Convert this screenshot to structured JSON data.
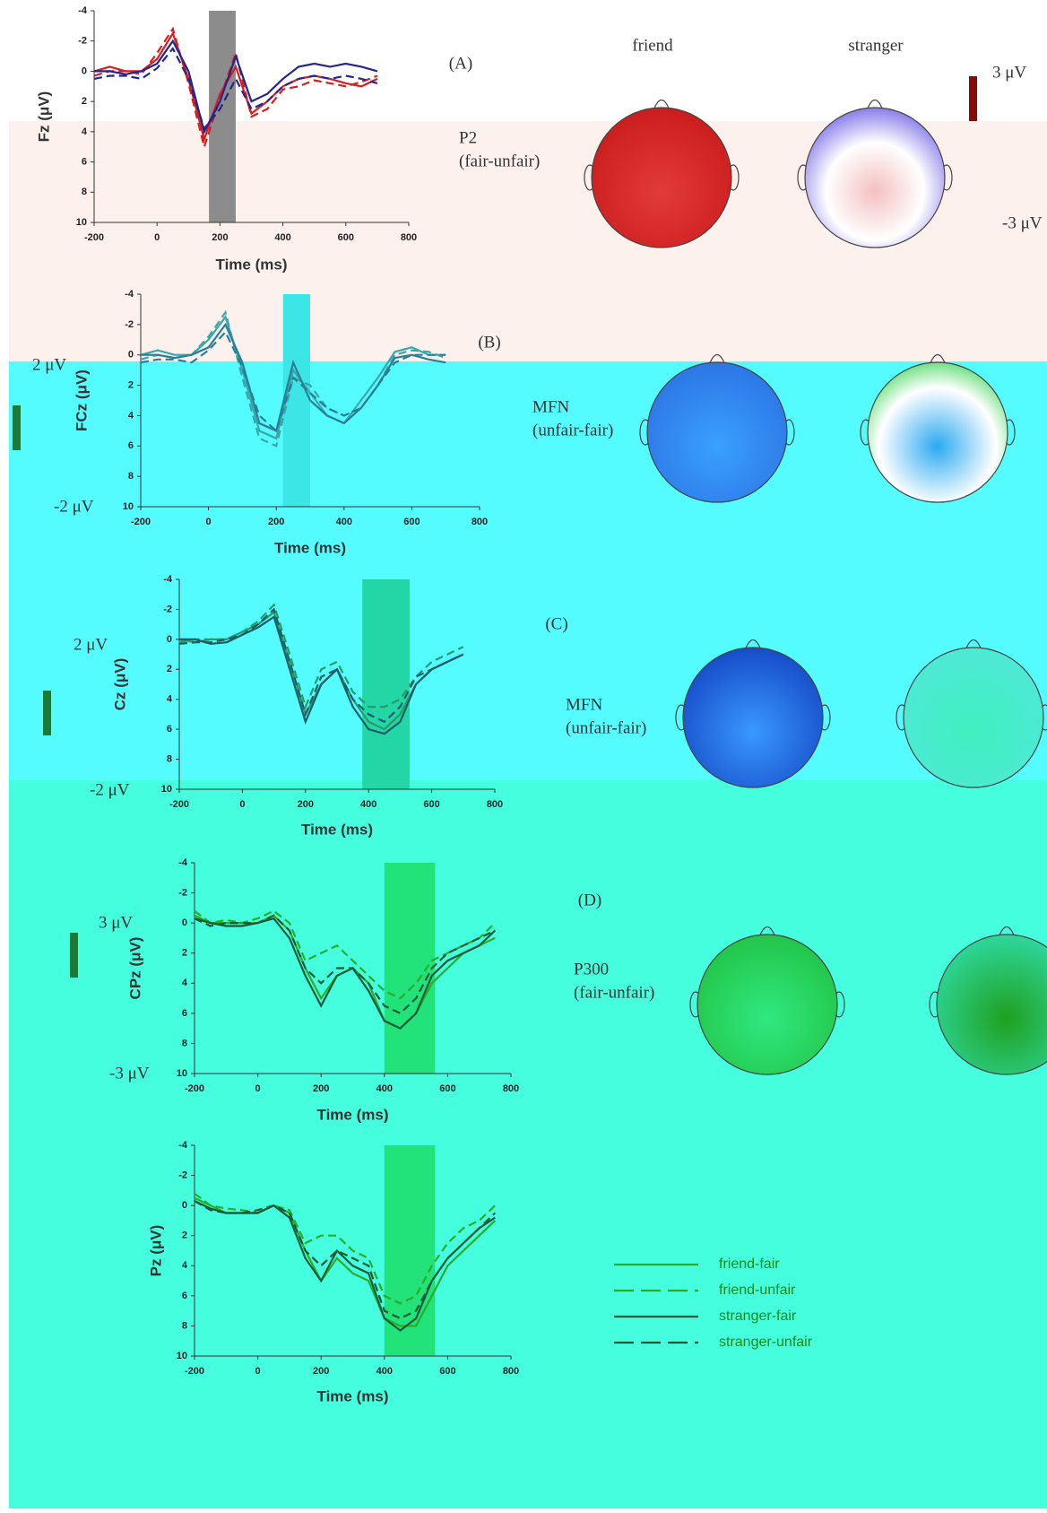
{
  "map_titles": [
    "friend",
    "stranger"
  ],
  "chart_data": [
    {
      "type": "line",
      "ylabel": "Fz (μV)",
      "xlabel": "Time (ms)",
      "panel": "(A)",
      "component": "P2",
      "contrast": "(fair-unfair)",
      "scale_max": "3 μV",
      "scale_min": "-3 μV",
      "x": [
        -200,
        -150,
        -100,
        -50,
        0,
        50,
        100,
        150,
        200,
        250,
        300,
        350,
        400,
        450,
        500,
        550,
        600,
        650,
        700
      ],
      "xlim": [
        -200,
        800
      ],
      "xticks": [
        -200,
        0,
        200,
        400,
        600,
        800
      ],
      "ylim": [
        -4,
        10
      ],
      "yticks": [
        -4,
        -2,
        0,
        2,
        4,
        6,
        8,
        10
      ],
      "y_inverted": true,
      "window": [
        165,
        250
      ],
      "window_color": "#8c8c8c",
      "series": [
        {
          "name": "friend-fair",
          "color": "#d42020",
          "dashed": false,
          "values": [
            0,
            -0.3,
            0,
            0,
            -0.8,
            -2.5,
            0.5,
            4.5,
            1.5,
            -0.3,
            2.8,
            2,
            1,
            0.5,
            0.3,
            0.5,
            0.8,
            1,
            0.5
          ]
        },
        {
          "name": "friend-unfair",
          "color": "#d42020",
          "dashed": true,
          "values": [
            0.3,
            0,
            0,
            0.2,
            -1.2,
            -2.8,
            0.8,
            5,
            1.8,
            -1.2,
            3,
            2.5,
            1.2,
            1,
            0.6,
            0.8,
            1,
            0.7,
            0.3
          ]
        },
        {
          "name": "stranger-fair",
          "color": "#25258f",
          "dashed": false,
          "values": [
            0,
            0,
            0.2,
            0,
            -0.5,
            -2,
            0,
            4,
            2,
            -1,
            2,
            1.5,
            0.5,
            -0.3,
            -0.5,
            -0.3,
            -0.5,
            -0.3,
            0
          ]
        },
        {
          "name": "stranger-unfair",
          "color": "#25258f",
          "dashed": true,
          "values": [
            0.5,
            0.3,
            0.3,
            0.5,
            -0.2,
            -1.5,
            0.5,
            3.8,
            2.5,
            0.5,
            2.5,
            2,
            1,
            0.5,
            0.3,
            0.5,
            0.3,
            0.5,
            0.8
          ]
        }
      ]
    },
    {
      "type": "line",
      "ylabel": "FCz (μV)",
      "xlabel": "Time (ms)",
      "panel": "(B)",
      "component": "MFN",
      "contrast": "(unfair-fair)",
      "scale_max": "2 μV",
      "scale_min": "-2 μV",
      "x": [
        -200,
        -150,
        -100,
        -50,
        0,
        50,
        100,
        150,
        200,
        250,
        300,
        350,
        400,
        450,
        500,
        550,
        600,
        650,
        700
      ],
      "xlim": [
        -200,
        800
      ],
      "xticks": [
        -200,
        0,
        200,
        400,
        600,
        800
      ],
      "ylim": [
        -4,
        10
      ],
      "yticks": [
        -4,
        -2,
        0,
        2,
        4,
        6,
        8,
        10
      ],
      "y_inverted": true,
      "window": [
        220,
        300
      ],
      "window_color": "#3ce6e6",
      "series": [
        {
          "name": "friend-fair",
          "color": "#39a8a8",
          "dashed": false,
          "values": [
            0,
            -0.3,
            0,
            0,
            -1,
            -2.5,
            1,
            5,
            5.5,
            1,
            2.5,
            4,
            4.5,
            3,
            1.5,
            -0.2,
            -0.5,
            0,
            0
          ]
        },
        {
          "name": "friend-unfair",
          "color": "#39a8a8",
          "dashed": true,
          "values": [
            0.3,
            0,
            0.2,
            0,
            -1.2,
            -2.8,
            1.5,
            5.5,
            6,
            1.5,
            2,
            3.5,
            4,
            3.5,
            2,
            0,
            -0.3,
            -0.2,
            0.2
          ]
        },
        {
          "name": "stranger-fair",
          "color": "#2a7f96",
          "dashed": false,
          "values": [
            0,
            0,
            0.2,
            0,
            -0.5,
            -2,
            0.5,
            4.5,
            5,
            0.5,
            3,
            4,
            4.5,
            3.5,
            2,
            0.2,
            0,
            0.3,
            0.5
          ]
        },
        {
          "name": "stranger-unfair",
          "color": "#2a7f96",
          "dashed": true,
          "values": [
            0.5,
            0.3,
            0.3,
            0.5,
            -0.3,
            -1.5,
            0.8,
            4,
            5,
            1.5,
            2.5,
            3.5,
            4,
            3.5,
            2,
            0.5,
            0,
            0,
            0
          ]
        }
      ]
    },
    {
      "type": "line",
      "ylabel": "Cz (μV)",
      "xlabel": "Time (ms)",
      "panel": "(C)",
      "component": "MFN",
      "contrast": "(unfair-fair)",
      "scale_max": "2 μV",
      "scale_min": "-2 μV",
      "x": [
        -200,
        -150,
        -100,
        -50,
        0,
        50,
        100,
        150,
        200,
        250,
        300,
        350,
        400,
        450,
        500,
        550,
        600,
        650,
        700
      ],
      "xlim": [
        -200,
        800
      ],
      "xticks": [
        -200,
        0,
        200,
        400,
        600,
        800
      ],
      "ylim": [
        -4,
        10
      ],
      "yticks": [
        -4,
        -2,
        0,
        2,
        4,
        6,
        8,
        10
      ],
      "y_inverted": true,
      "window": [
        380,
        530
      ],
      "window_color": "#22d6a6",
      "series": [
        {
          "name": "friend-fair",
          "color": "#2a9a6a",
          "dashed": false,
          "values": [
            0,
            0.2,
            0,
            0,
            -0.5,
            -1,
            -1.8,
            1.5,
            5,
            3,
            2,
            4,
            5.5,
            6,
            5,
            3,
            2,
            1.5,
            1
          ]
        },
        {
          "name": "friend-unfair",
          "color": "#2a9a6a",
          "dashed": true,
          "values": [
            0.2,
            0,
            0,
            0,
            -0.5,
            -1.2,
            -2.3,
            1,
            4.5,
            2,
            1.5,
            3.5,
            4.5,
            4.5,
            4,
            2.5,
            1.5,
            1,
            0.5
          ]
        },
        {
          "name": "stranger-fair",
          "color": "#1a5e66",
          "dashed": false,
          "values": [
            0,
            0,
            0.3,
            0.2,
            -0.3,
            -0.8,
            -1.5,
            2,
            5.5,
            3,
            2,
            4.5,
            6,
            6.3,
            5.5,
            3,
            2,
            1.5,
            1
          ]
        },
        {
          "name": "stranger-unfair",
          "color": "#1a5e66",
          "dashed": true,
          "values": [
            0.3,
            0.2,
            0.2,
            0,
            -0.3,
            -1,
            -2,
            1.5,
            5,
            2.5,
            2,
            4,
            5,
            5.5,
            4.5,
            2.5,
            2,
            1.5,
            1
          ]
        }
      ]
    },
    {
      "type": "line",
      "ylabel": "CPz (μV)",
      "xlabel": "Time (ms)",
      "panel": "(D)",
      "component": "P300",
      "contrast": "(fair-unfair)",
      "scale_max": "3 μV",
      "scale_min": "-3 μV",
      "x": [
        -200,
        -150,
        -100,
        -50,
        0,
        50,
        100,
        150,
        200,
        250,
        300,
        350,
        400,
        450,
        500,
        550,
        600,
        650,
        700,
        750
      ],
      "xlim": [
        -200,
        800
      ],
      "xticks": [
        -200,
        0,
        200,
        400,
        600,
        800
      ],
      "ylim": [
        -4,
        10
      ],
      "yticks": [
        -4,
        -2,
        0,
        2,
        4,
        6,
        8,
        10
      ],
      "y_inverted": true,
      "window": [
        400,
        560
      ],
      "window_color": "#22e27a",
      "series": [
        {
          "name": "friend-fair",
          "color": "#2aae2a",
          "dashed": false,
          "values": [
            -0.5,
            0,
            0,
            0,
            0,
            -0.5,
            0.5,
            3,
            5,
            3.5,
            3,
            4,
            6.5,
            7,
            6,
            4,
            3,
            2,
            1.5,
            1
          ]
        },
        {
          "name": "friend-unfair",
          "color": "#2aae2a",
          "dashed": true,
          "values": [
            -0.8,
            0,
            -0.2,
            0,
            -0.3,
            -0.8,
            0,
            2.5,
            2,
            1.5,
            2.5,
            3.5,
            4.5,
            5,
            4,
            2.5,
            2,
            1.5,
            1,
            0
          ]
        },
        {
          "name": "stranger-fair",
          "color": "#1a5a3a",
          "dashed": false,
          "values": [
            -0.3,
            0,
            0.2,
            0.2,
            0,
            -0.3,
            1,
            3.5,
            5.5,
            3.5,
            3,
            4.5,
            6.5,
            7,
            6,
            3.5,
            2.5,
            2,
            1.5,
            0.5
          ]
        },
        {
          "name": "stranger-unfair",
          "color": "#1a5a3a",
          "dashed": true,
          "values": [
            -0.3,
            0.2,
            0,
            0,
            0,
            -0.5,
            0.5,
            3,
            4,
            3,
            3,
            4,
            5.5,
            6,
            5,
            3,
            2,
            1.5,
            1,
            0.5
          ]
        }
      ]
    },
    {
      "type": "line",
      "ylabel": "Pz (μV)",
      "xlabel": "Time (ms)",
      "legend": "right",
      "x": [
        -200,
        -150,
        -100,
        -50,
        0,
        50,
        100,
        150,
        200,
        250,
        300,
        350,
        400,
        450,
        500,
        550,
        600,
        650,
        700,
        750
      ],
      "xlim": [
        -200,
        800
      ],
      "xticks": [
        -200,
        0,
        200,
        400,
        600,
        800
      ],
      "ylim": [
        -4,
        10
      ],
      "yticks": [
        -4,
        -2,
        0,
        2,
        4,
        6,
        8,
        10
      ],
      "y_inverted": true,
      "window": [
        400,
        560
      ],
      "window_color": "#22e27a",
      "series": [
        {
          "name": "friend-fair",
          "color": "#2aae2a",
          "dashed": false,
          "values": [
            -0.5,
            0,
            0.5,
            0.5,
            0.5,
            0,
            0.5,
            3,
            5,
            3.5,
            4.5,
            5,
            7.5,
            8,
            8,
            6,
            4,
            3,
            2,
            1
          ]
        },
        {
          "name": "friend-unfair",
          "color": "#2aae2a",
          "dashed": true,
          "values": [
            -0.8,
            0,
            0.2,
            0.3,
            0.5,
            0,
            0.3,
            2.5,
            2,
            2,
            3,
            3.5,
            6,
            6.5,
            6,
            4,
            2.5,
            1.5,
            1,
            0
          ]
        },
        {
          "name": "stranger-fair",
          "color": "#1a5a3a",
          "dashed": false,
          "values": [
            -0.3,
            0.2,
            0.5,
            0.5,
            0.5,
            0,
            0.8,
            3.5,
            5,
            3,
            4,
            4.5,
            7.5,
            8.3,
            7.5,
            5,
            3.5,
            2.5,
            1.5,
            0.8
          ]
        },
        {
          "name": "stranger-unfair",
          "color": "#1a5a3a",
          "dashed": true,
          "values": [
            -0.3,
            0.3,
            0.5,
            0.5,
            0.3,
            0,
            0.5,
            3,
            4,
            3,
            3.5,
            4,
            7,
            7.5,
            7,
            5,
            3.5,
            2.5,
            1.5,
            0.5
          ]
        }
      ]
    }
  ]
}
